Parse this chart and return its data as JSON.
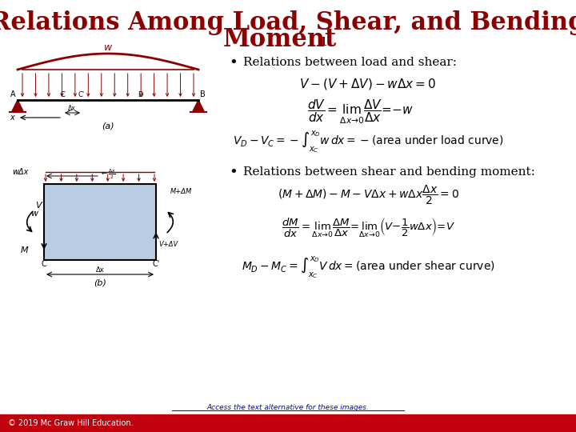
{
  "title_line1": "Relations Among Load, Shear, and Bending",
  "title_line2": "Moment",
  "title_color": "#8B0000",
  "title_fontsize": 22,
  "bg_color": "#FFFFFF",
  "footer_bg_color": "#C0000C",
  "footer_text": "© 2019 Mc Graw Hill Education.",
  "footer_text_color": "#FFFFFF",
  "footer_link_text": "Access the text alternative for these images.",
  "footer_link_color": "#0000CC",
  "bullet1": "Relations between load and shear:",
  "bullet2": "Relations between shear and bending moment:"
}
